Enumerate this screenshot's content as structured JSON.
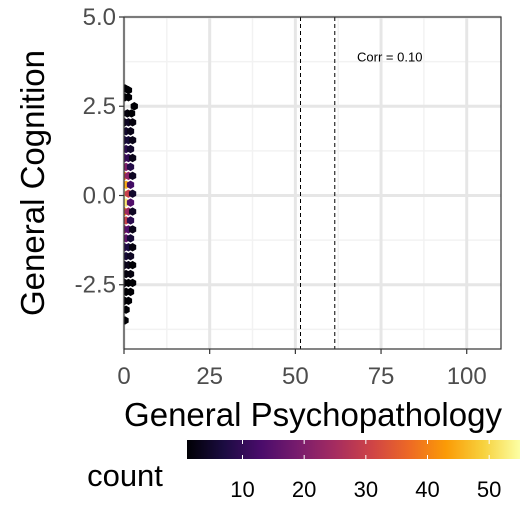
{
  "chart_data": {
    "type": "hexbin",
    "xlabel": "General Psychopathology",
    "ylabel": "General Cognition",
    "xlim": [
      0,
      110
    ],
    "ylim": [
      -4.3,
      5.0
    ],
    "x_ticks": [
      0,
      25,
      50,
      75,
      100
    ],
    "x_tick_labels": [
      "0",
      "25",
      "50",
      "75",
      "100"
    ],
    "y_ticks": [
      -2.5,
      0.0,
      2.5,
      5.0
    ],
    "y_tick_labels": [
      "-2.5",
      "0.0",
      "2.5",
      "5.0"
    ],
    "grid": true,
    "vlines": [
      51.5,
      61.5
    ],
    "annotation": {
      "text": "Corr = 0.10",
      "x": 68,
      "y": 3.9
    },
    "colorbar": {
      "title": "count",
      "range": [
        1,
        55
      ],
      "ticks": [
        10,
        20,
        30,
        40,
        50
      ],
      "tick_labels": [
        "10",
        "20",
        "30",
        "40",
        "50"
      ],
      "colormap": "inferno",
      "colors": [
        "#000004",
        "#1b0c41",
        "#4a0c6b",
        "#781c6d",
        "#a52c60",
        "#cf4446",
        "#ed6925",
        "#fb9b06",
        "#f7d13d",
        "#fcffa4"
      ]
    },
    "bins": [
      {
        "x": 0.3,
        "y": 3.0,
        "count": 1
      },
      {
        "x": 1.3,
        "y": 2.95,
        "count": 1
      },
      {
        "x": 0.3,
        "y": 2.75,
        "count": 1
      },
      {
        "x": 1.3,
        "y": 2.75,
        "count": 1
      },
      {
        "x": 3.0,
        "y": 2.5,
        "count": 1
      },
      {
        "x": 1.0,
        "y": 2.3,
        "count": 2
      },
      {
        "x": 2.2,
        "y": 2.3,
        "count": 1
      },
      {
        "x": 0.2,
        "y": 2.05,
        "count": 3
      },
      {
        "x": 1.3,
        "y": 2.05,
        "count": 4
      },
      {
        "x": 2.5,
        "y": 2.05,
        "count": 2
      },
      {
        "x": 0.6,
        "y": 1.8,
        "count": 5
      },
      {
        "x": 1.9,
        "y": 1.8,
        "count": 3
      },
      {
        "x": 0.2,
        "y": 1.55,
        "count": 7
      },
      {
        "x": 1.3,
        "y": 1.55,
        "count": 6
      },
      {
        "x": 2.5,
        "y": 1.55,
        "count": 3
      },
      {
        "x": 0.6,
        "y": 1.3,
        "count": 9
      },
      {
        "x": 1.9,
        "y": 1.3,
        "count": 5
      },
      {
        "x": 0.2,
        "y": 1.05,
        "count": 14
      },
      {
        "x": 1.3,
        "y": 1.05,
        "count": 10
      },
      {
        "x": 2.5,
        "y": 1.05,
        "count": 3
      },
      {
        "x": 0.6,
        "y": 0.8,
        "count": 20
      },
      {
        "x": 1.9,
        "y": 0.8,
        "count": 8
      },
      {
        "x": 0.2,
        "y": 0.55,
        "count": 38
      },
      {
        "x": 1.3,
        "y": 0.55,
        "count": 22
      },
      {
        "x": 2.5,
        "y": 0.55,
        "count": 4
      },
      {
        "x": 0.6,
        "y": 0.3,
        "count": 45
      },
      {
        "x": 1.9,
        "y": 0.3,
        "count": 12
      },
      {
        "x": 0.2,
        "y": 0.05,
        "count": 55
      },
      {
        "x": 1.3,
        "y": 0.05,
        "count": 30
      },
      {
        "x": 2.5,
        "y": 0.05,
        "count": 5
      },
      {
        "x": 0.6,
        "y": -0.2,
        "count": 52
      },
      {
        "x": 1.9,
        "y": -0.2,
        "count": 14
      },
      {
        "x": 0.2,
        "y": -0.45,
        "count": 40
      },
      {
        "x": 1.3,
        "y": -0.45,
        "count": 24
      },
      {
        "x": 2.5,
        "y": -0.45,
        "count": 4
      },
      {
        "x": 0.6,
        "y": -0.7,
        "count": 30
      },
      {
        "x": 1.9,
        "y": -0.7,
        "count": 9
      },
      {
        "x": 0.2,
        "y": -0.95,
        "count": 22
      },
      {
        "x": 1.3,
        "y": -0.95,
        "count": 14
      },
      {
        "x": 2.5,
        "y": -0.95,
        "count": 3
      },
      {
        "x": 0.6,
        "y": -1.2,
        "count": 16
      },
      {
        "x": 1.9,
        "y": -1.2,
        "count": 6
      },
      {
        "x": 0.2,
        "y": -1.45,
        "count": 10
      },
      {
        "x": 1.3,
        "y": -1.45,
        "count": 7
      },
      {
        "x": 2.5,
        "y": -1.45,
        "count": 2
      },
      {
        "x": 0.6,
        "y": -1.7,
        "count": 6
      },
      {
        "x": 1.9,
        "y": -1.7,
        "count": 4
      },
      {
        "x": 0.2,
        "y": -1.95,
        "count": 4
      },
      {
        "x": 1.3,
        "y": -1.95,
        "count": 3
      },
      {
        "x": 2.5,
        "y": -1.95,
        "count": 1
      },
      {
        "x": 0.6,
        "y": -2.2,
        "count": 2
      },
      {
        "x": 1.9,
        "y": -2.2,
        "count": 2
      },
      {
        "x": 0.2,
        "y": -2.45,
        "count": 2
      },
      {
        "x": 1.3,
        "y": -2.45,
        "count": 1
      },
      {
        "x": 2.5,
        "y": -2.45,
        "count": 1
      },
      {
        "x": 0.6,
        "y": -2.7,
        "count": 1
      },
      {
        "x": 1.9,
        "y": -2.7,
        "count": 1
      },
      {
        "x": 0.2,
        "y": -2.95,
        "count": 1
      },
      {
        "x": 1.3,
        "y": -2.95,
        "count": 1
      },
      {
        "x": 0.6,
        "y": -3.2,
        "count": 1
      },
      {
        "x": 0.3,
        "y": -3.5,
        "count": 1
      }
    ]
  }
}
